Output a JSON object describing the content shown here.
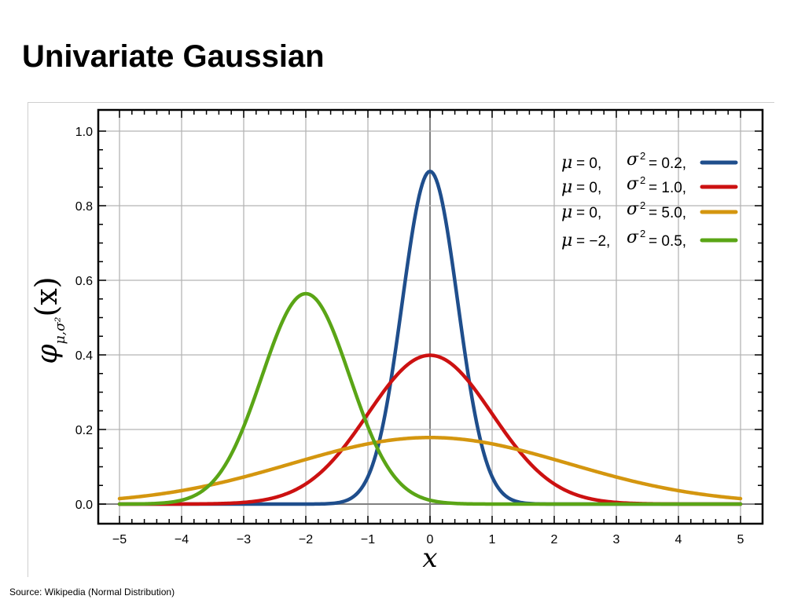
{
  "page": {
    "title": "Univariate Gaussian",
    "source": "Source: Wikipedia (Normal Distribution)"
  },
  "chart_data": {
    "type": "line",
    "xlabel": "x",
    "ylabel": {
      "symbol": "φ",
      "subscript": "μ,σ²",
      "argument": "(x)"
    },
    "xlim": [
      -5,
      5
    ],
    "ylim": [
      0,
      1.0
    ],
    "x_ticks": [
      "−5",
      "−4",
      "−3",
      "−2",
      "−1",
      "0",
      "1",
      "2",
      "3",
      "4",
      "5"
    ],
    "y_ticks": [
      "0.0",
      "0.2",
      "0.4",
      "0.6",
      "0.8",
      "1.0"
    ],
    "grid": true,
    "legend_position": "top-right",
    "series": [
      {
        "name": "μ = 0, σ² = 0.2,",
        "mu_text": "μ",
        "mu_value": "= 0,",
        "sigma_text": "σ",
        "sigma_sup": "2",
        "sigma_value": "= 0.2,",
        "mu": 0,
        "variance": 0.2,
        "color": "#1f4e8c"
      },
      {
        "name": "μ = 0, σ² = 1.0,",
        "mu_text": "μ",
        "mu_value": "= 0,",
        "sigma_text": "σ",
        "sigma_sup": "2",
        "sigma_value": "= 1.0,",
        "mu": 0,
        "variance": 1.0,
        "color": "#cc1111"
      },
      {
        "name": "μ = 0, σ² = 5.0,",
        "mu_text": "μ",
        "mu_value": "= 0,",
        "sigma_text": "σ",
        "sigma_sup": "2",
        "sigma_value": "= 5.0,",
        "mu": 0,
        "variance": 5.0,
        "color": "#d4960f"
      },
      {
        "name": "μ = −2, σ² = 0.5,",
        "mu_text": "μ",
        "mu_value": "= −2,",
        "sigma_text": "σ",
        "sigma_sup": "2",
        "sigma_value": "= 0.5,",
        "mu": -2,
        "variance": 0.5,
        "color": "#5aa516"
      }
    ]
  }
}
